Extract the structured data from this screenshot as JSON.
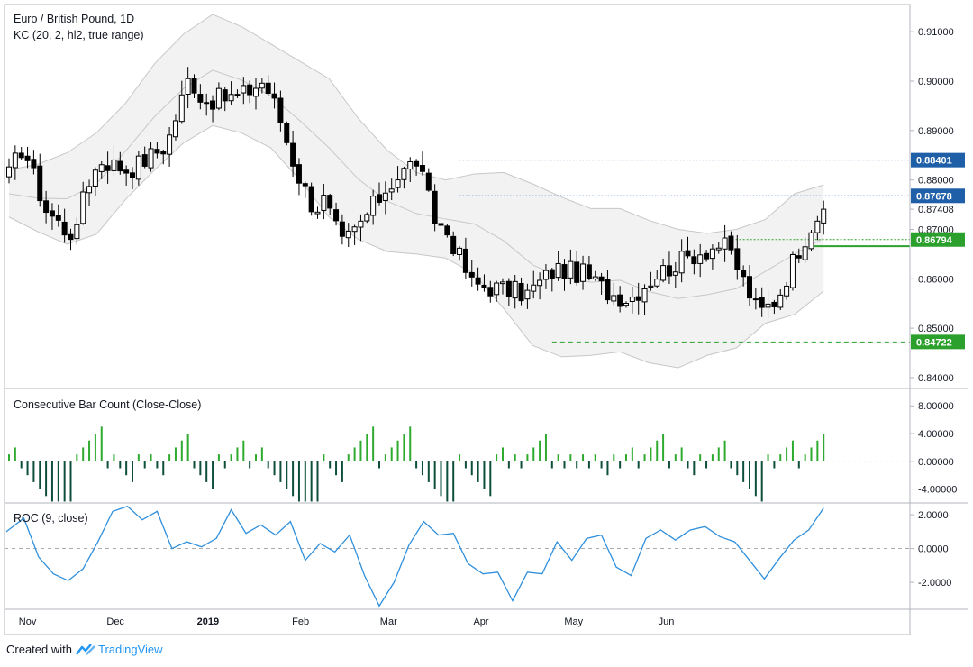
{
  "header": {
    "symbol_title": "Euro / British Pound, 1D",
    "indicator": "KC (20, 2, hl2, true range)"
  },
  "panes": {
    "count_title": "Consecutive Bar Count (Close-Close)",
    "roc_title": "ROC (9, close)"
  },
  "footer": {
    "created_with": "Created with",
    "brand": "TradingView"
  },
  "colors": {
    "up_candle": "#ffffff",
    "down_candle": "#000000",
    "channel_fill": "#f2f2f2",
    "channel_line": "#c7c7c7",
    "count_up": "#2eaa2e",
    "count_down": "#0d4f3c",
    "roc_line": "#2f8fdc",
    "tag_blue": "#1e5fa8",
    "tag_green": "#2ca02c"
  },
  "chart_data": [
    {
      "type": "candlestick",
      "title": "Euro / British Pound, 1D",
      "x_ticks": [
        "Nov",
        "Dec",
        "2019",
        "Feb",
        "Mar",
        "Apr",
        "May",
        "Jun"
      ],
      "y_ticks": [
        "0.91000",
        "0.90000",
        "0.89000",
        "0.88000",
        "0.87408",
        "0.87000",
        "0.86000",
        "0.85000",
        "0.84000"
      ],
      "ylim": [
        0.8378,
        0.9155
      ],
      "current_price": 0.87408,
      "price_tags": [
        {
          "value": 0.88401,
          "label": "0.88401",
          "color": "blue"
        },
        {
          "value": 0.87678,
          "label": "0.87678",
          "color": "blue"
        },
        {
          "value": 0.86794,
          "label": "0.86794",
          "color": "green"
        },
        {
          "value": 0.84722,
          "label": "0.84722",
          "color": "green"
        }
      ],
      "keltner_upper_anchors": [
        0.882,
        0.8832,
        0.8855,
        0.8895,
        0.8955,
        0.9035,
        0.9095,
        0.9135,
        0.911,
        0.9075,
        0.904,
        0.9005,
        0.8925,
        0.886,
        0.8815,
        0.88,
        0.8812,
        0.8815,
        0.8792,
        0.8765,
        0.8742,
        0.8742,
        0.8718,
        0.87,
        0.8692,
        0.87,
        0.872,
        0.8772,
        0.879
      ],
      "keltner_lower_anchors": [
        0.8725,
        0.8695,
        0.867,
        0.869,
        0.876,
        0.882,
        0.8875,
        0.891,
        0.8895,
        0.8865,
        0.88,
        0.8725,
        0.868,
        0.8655,
        0.865,
        0.8642,
        0.861,
        0.854,
        0.8465,
        0.8442,
        0.8445,
        0.8452,
        0.843,
        0.842,
        0.8445,
        0.846,
        0.851,
        0.8528,
        0.8575
      ],
      "keltner_mid_anchors": [
        0.8772,
        0.8763,
        0.8762,
        0.8792,
        0.8858,
        0.8928,
        0.8985,
        0.9022,
        0.9002,
        0.897,
        0.892,
        0.8865,
        0.8802,
        0.8757,
        0.8732,
        0.8721,
        0.8711,
        0.8677,
        0.8628,
        0.8603,
        0.8593,
        0.8597,
        0.8574,
        0.856,
        0.8568,
        0.858,
        0.8615,
        0.865,
        0.8682
      ]
    },
    {
      "type": "bar",
      "title": "Consecutive Bar Count (Close-Close)",
      "y_ticks": [
        "8.00000",
        "4.00000",
        "0.00000",
        "-4.00000"
      ],
      "ylim": [
        -6,
        10.5
      ],
      "note": "values are consecutive up (+) / down (-) close counts; derived per bar from the candle series"
    },
    {
      "type": "line",
      "title": "ROC (9, close)",
      "y_ticks": [
        "2.0000",
        "0.0000",
        "-2.0000"
      ],
      "ylim": [
        -3.6,
        2.7
      ],
      "anchors": [
        1.0,
        1.8,
        -0.5,
        -1.5,
        -1.9,
        -1.2,
        0.4,
        2.2,
        2.5,
        1.7,
        2.2,
        0.0,
        0.4,
        0.1,
        0.6,
        2.3,
        0.9,
        1.4,
        0.8,
        1.6,
        -0.7,
        0.3,
        -0.2,
        0.8,
        -1.6,
        -3.4,
        -2.0,
        0.2,
        1.6,
        0.8,
        0.9,
        -0.9,
        -1.5,
        -1.4,
        -3.1,
        -1.4,
        -1.5,
        0.4,
        -0.7,
        0.6,
        0.8,
        -1.1,
        -1.6,
        0.6,
        1.1,
        0.5,
        1.1,
        1.3,
        0.7,
        0.4,
        -0.7,
        -1.8,
        -0.6,
        0.5,
        1.1,
        2.4
      ]
    }
  ]
}
